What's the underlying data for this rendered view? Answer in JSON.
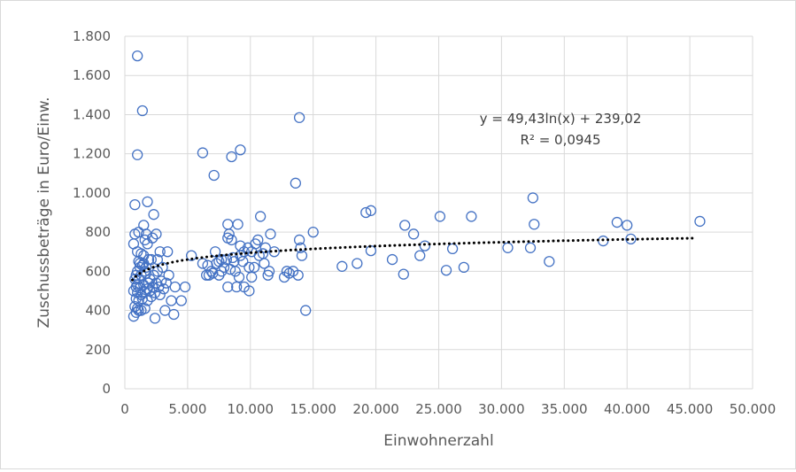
{
  "chart_data": {
    "type": "scatter",
    "title": "",
    "xlabel": "Einwohnerzahl",
    "ylabel": "Zuschussbeträge in Euro/Einw.",
    "xlim": [
      0,
      50000
    ],
    "ylim": [
      0,
      1800
    ],
    "x_ticks": [
      0,
      5000,
      10000,
      15000,
      20000,
      25000,
      30000,
      35000,
      40000,
      45000,
      50000
    ],
    "x_tick_labels": [
      "0",
      "5.000",
      "10.000",
      "15.000",
      "20.000",
      "25.000",
      "30.000",
      "35.000",
      "40.000",
      "45.000",
      "50.000"
    ],
    "y_ticks": [
      0,
      200,
      400,
      600,
      800,
      1000,
      1200,
      1400,
      1600,
      1800
    ],
    "y_tick_labels": [
      "0",
      "200",
      "400",
      "600",
      "800",
      "1.000",
      "1.200",
      "1.400",
      "1.600",
      "1.800"
    ],
    "grid": true,
    "legend": "none",
    "marker_color": "#4472c4",
    "trendline": {
      "type": "logarithmic",
      "a": 49.43,
      "b": 239.02,
      "x_range": [
        600,
        45500
      ],
      "color": "#000000",
      "style": "dotted",
      "equation_label": "y = 49,43ln(x) + 239,02",
      "r2_label": "R² = 0,0945"
    },
    "points": [
      [
        1000,
        1700
      ],
      [
        1400,
        1420
      ],
      [
        1000,
        1195
      ],
      [
        6200,
        1205
      ],
      [
        9200,
        1220
      ],
      [
        8500,
        1185
      ],
      [
        7100,
        1090
      ],
      [
        13900,
        1385
      ],
      [
        13600,
        1050
      ],
      [
        800,
        940
      ],
      [
        1800,
        955
      ],
      [
        2300,
        890
      ],
      [
        1500,
        835
      ],
      [
        1100,
        800
      ],
      [
        800,
        790
      ],
      [
        2500,
        790
      ],
      [
        1700,
        790
      ],
      [
        1800,
        740
      ],
      [
        1600,
        760
      ],
      [
        1900,
        660
      ],
      [
        2200,
        770
      ],
      [
        700,
        740
      ],
      [
        1000,
        700
      ],
      [
        1300,
        690
      ],
      [
        1500,
        680
      ],
      [
        2100,
        660
      ],
      [
        2600,
        660
      ],
      [
        3400,
        700
      ],
      [
        2800,
        700
      ],
      [
        1100,
        650
      ],
      [
        1000,
        600
      ],
      [
        1200,
        620
      ],
      [
        1400,
        630
      ],
      [
        1600,
        600
      ],
      [
        900,
        580
      ],
      [
        800,
        560
      ],
      [
        1100,
        560
      ],
      [
        1300,
        580
      ],
      [
        1700,
        590
      ],
      [
        2000,
        560
      ],
      [
        2300,
        580
      ],
      [
        2600,
        600
      ],
      [
        3000,
        620
      ],
      [
        3500,
        580
      ],
      [
        1000,
        530
      ],
      [
        900,
        520
      ],
      [
        1200,
        515
      ],
      [
        1500,
        530
      ],
      [
        1800,
        510
      ],
      [
        2200,
        520
      ],
      [
        2500,
        540
      ],
      [
        2900,
        550
      ],
      [
        3300,
        540
      ],
      [
        4000,
        520
      ],
      [
        4800,
        520
      ],
      [
        700,
        500
      ],
      [
        1000,
        490
      ],
      [
        1300,
        480
      ],
      [
        1600,
        495
      ],
      [
        2000,
        500
      ],
      [
        2400,
        490
      ],
      [
        2800,
        480
      ],
      [
        900,
        460
      ],
      [
        1100,
        450
      ],
      [
        1400,
        460
      ],
      [
        1800,
        450
      ],
      [
        2100,
        470
      ],
      [
        3700,
        450
      ],
      [
        4500,
        450
      ],
      [
        800,
        420
      ],
      [
        1000,
        410
      ],
      [
        1300,
        400
      ],
      [
        1600,
        410
      ],
      [
        900,
        390
      ],
      [
        1100,
        400
      ],
      [
        700,
        370
      ],
      [
        3200,
        400
      ],
      [
        3900,
        380
      ],
      [
        2400,
        360
      ],
      [
        1200,
        640
      ],
      [
        1500,
        640
      ],
      [
        1700,
        620
      ],
      [
        2700,
        520
      ],
      [
        3100,
        510
      ],
      [
        1900,
        540
      ],
      [
        5300,
        680
      ],
      [
        6200,
        640
      ],
      [
        6600,
        630
      ],
      [
        6900,
        600
      ],
      [
        7200,
        700
      ],
      [
        7500,
        650
      ],
      [
        7900,
        620
      ],
      [
        8200,
        770
      ],
      [
        8200,
        840
      ],
      [
        8300,
        790
      ],
      [
        8500,
        760
      ],
      [
        8700,
        650
      ],
      [
        9000,
        840
      ],
      [
        9200,
        730
      ],
      [
        9500,
        700
      ],
      [
        9800,
        720
      ],
      [
        10100,
        700
      ],
      [
        10400,
        740
      ],
      [
        10600,
        760
      ],
      [
        11000,
        690
      ],
      [
        11200,
        720
      ],
      [
        11600,
        790
      ],
      [
        6700,
        580
      ],
      [
        7000,
        590
      ],
      [
        7300,
        640
      ],
      [
        7700,
        600
      ],
      [
        8100,
        660
      ],
      [
        8400,
        610
      ],
      [
        8800,
        600
      ],
      [
        9100,
        570
      ],
      [
        9400,
        650
      ],
      [
        9900,
        620
      ],
      [
        10300,
        620
      ],
      [
        10700,
        680
      ],
      [
        11100,
        640
      ],
      [
        11500,
        600
      ],
      [
        11900,
        700
      ],
      [
        8200,
        520
      ],
      [
        8900,
        520
      ],
      [
        9500,
        520
      ],
      [
        9900,
        500
      ],
      [
        10100,
        570
      ],
      [
        10800,
        880
      ],
      [
        11400,
        580
      ],
      [
        7500,
        580
      ],
      [
        6500,
        580
      ],
      [
        7700,
        660
      ],
      [
        8600,
        670
      ],
      [
        9200,
        680
      ],
      [
        12700,
        570
      ],
      [
        13100,
        590
      ],
      [
        13400,
        600
      ],
      [
        13800,
        580
      ],
      [
        13900,
        760
      ],
      [
        14000,
        720
      ],
      [
        14100,
        680
      ],
      [
        14400,
        400
      ],
      [
        15000,
        800
      ],
      [
        12900,
        600
      ],
      [
        17300,
        625
      ],
      [
        18500,
        640
      ],
      [
        19200,
        900
      ],
      [
        19600,
        910
      ],
      [
        19600,
        705
      ],
      [
        21300,
        660
      ],
      [
        22200,
        585
      ],
      [
        22300,
        835
      ],
      [
        23000,
        790
      ],
      [
        23500,
        680
      ],
      [
        23900,
        730
      ],
      [
        25100,
        880
      ],
      [
        25600,
        605
      ],
      [
        26100,
        715
      ],
      [
        27000,
        620
      ],
      [
        27600,
        880
      ],
      [
        30500,
        720
      ],
      [
        32300,
        720
      ],
      [
        32500,
        975
      ],
      [
        32600,
        840
      ],
      [
        33800,
        650
      ],
      [
        38100,
        755
      ],
      [
        39200,
        850
      ],
      [
        40000,
        835
      ],
      [
        40300,
        765
      ],
      [
        45800,
        855
      ]
    ]
  }
}
